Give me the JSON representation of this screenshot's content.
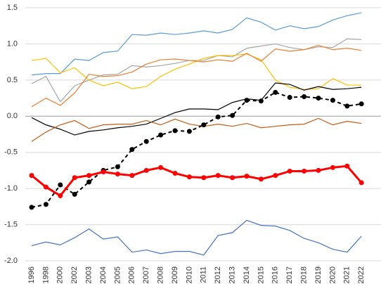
{
  "chart_data": {
    "type": "line",
    "categories": [
      "1996",
      "1998",
      "2000",
      "2002",
      "2003",
      "2004",
      "2005",
      "2006",
      "2007",
      "2008",
      "2009",
      "2010",
      "2011",
      "2012",
      "2013",
      "2014",
      "2015",
      "2016",
      "2017",
      "2018",
      "2019",
      "2020",
      "2021",
      "2022"
    ],
    "ylim": [
      -2.0,
      1.5
    ],
    "yticks": [
      1.5,
      {
        "value": 1.0,
        "label": "1.0"
      },
      0.5,
      {
        "value": 0.0,
        "label": "0.0"
      },
      -0.5,
      {
        "value": -1.0,
        "label": "-1.0"
      },
      -1.5,
      {
        "value": -2.0,
        "label": "-2.0"
      }
    ],
    "grid": true,
    "series": [
      {
        "color": "#5b9bd5",
        "values": [
          0.57,
          0.59,
          0.59,
          0.79,
          0.77,
          0.88,
          0.9,
          1.13,
          1.12,
          1.15,
          1.13,
          1.15,
          1.18,
          1.15,
          1.2,
          1.36,
          1.3,
          1.19,
          1.25,
          1.21,
          1.24,
          1.33,
          1.39,
          1.43
        ]
      },
      {
        "color": "#a5a5a5",
        "values": [
          0.45,
          0.55,
          0.2,
          0.42,
          0.5,
          0.57,
          0.58,
          0.7,
          0.68,
          0.7,
          0.73,
          0.77,
          0.77,
          0.84,
          0.82,
          0.94,
          0.97,
          1.0,
          0.95,
          0.92,
          0.96,
          0.95,
          1.07,
          1.06
        ]
      },
      {
        "color": "#ffc000",
        "values": [
          0.77,
          0.8,
          0.6,
          0.67,
          0.5,
          0.42,
          0.47,
          0.38,
          0.41,
          0.55,
          0.65,
          0.72,
          0.8,
          0.84,
          0.84,
          0.86,
          0.78,
          0.5,
          0.4,
          0.37,
          0.38,
          0.52,
          0.43,
          0.43
        ]
      },
      {
        "color": "#ed7d31",
        "values": [
          0.13,
          0.25,
          0.15,
          0.32,
          0.58,
          0.55,
          0.56,
          0.61,
          0.72,
          0.78,
          0.79,
          0.77,
          0.75,
          0.78,
          0.76,
          0.87,
          0.76,
          0.93,
          0.9,
          0.92,
          0.98,
          0.92,
          0.94,
          0.91
        ]
      },
      {
        "color": "#000000",
        "values": [
          -0.02,
          -0.12,
          -0.18,
          -0.26,
          -0.21,
          -0.19,
          -0.16,
          -0.14,
          -0.11,
          -0.03,
          0.05,
          0.1,
          0.1,
          0.09,
          0.19,
          0.24,
          0.22,
          0.46,
          0.44,
          0.36,
          0.41,
          0.37,
          0.38,
          0.4
        ]
      },
      {
        "color": "#c55a11",
        "values": [
          -0.35,
          -0.22,
          -0.12,
          -0.06,
          -0.17,
          -0.12,
          -0.11,
          -0.11,
          -0.06,
          -0.12,
          -0.04,
          -0.11,
          -0.14,
          -0.11,
          -0.14,
          -0.1,
          -0.16,
          -0.14,
          -0.12,
          -0.11,
          -0.03,
          -0.12,
          -0.07,
          -0.1
        ]
      },
      {
        "color": "#000000",
        "dashed": true,
        "markers": true,
        "values": [
          -1.26,
          -1.22,
          -0.95,
          -1.08,
          -0.91,
          -0.75,
          -0.7,
          -0.46,
          -0.35,
          -0.26,
          -0.2,
          -0.21,
          -0.12,
          -0.01,
          0.01,
          0.22,
          0.21,
          0.33,
          0.26,
          0.27,
          0.25,
          0.22,
          0.14,
          0.17
        ]
      },
      {
        "color": "#ff0000",
        "markers": true,
        "values": [
          -0.82,
          -0.98,
          -1.1,
          -0.85,
          -0.82,
          -0.77,
          -0.8,
          -0.82,
          -0.75,
          -0.71,
          -0.79,
          -0.84,
          -0.85,
          -0.82,
          -0.85,
          -0.83,
          -0.87,
          -0.82,
          -0.76,
          -0.76,
          -0.75,
          -0.71,
          -0.69,
          -0.92
        ]
      },
      {
        "color": "#4472c4",
        "values": [
          -1.79,
          -1.74,
          -1.78,
          -1.68,
          -1.56,
          -1.7,
          -1.67,
          -1.88,
          -1.85,
          -1.9,
          -1.87,
          -1.87,
          -1.92,
          -1.65,
          -1.61,
          -1.44,
          -1.51,
          -1.52,
          -1.58,
          -1.69,
          -1.75,
          -1.84,
          -1.88,
          -1.66
        ]
      }
    ]
  }
}
